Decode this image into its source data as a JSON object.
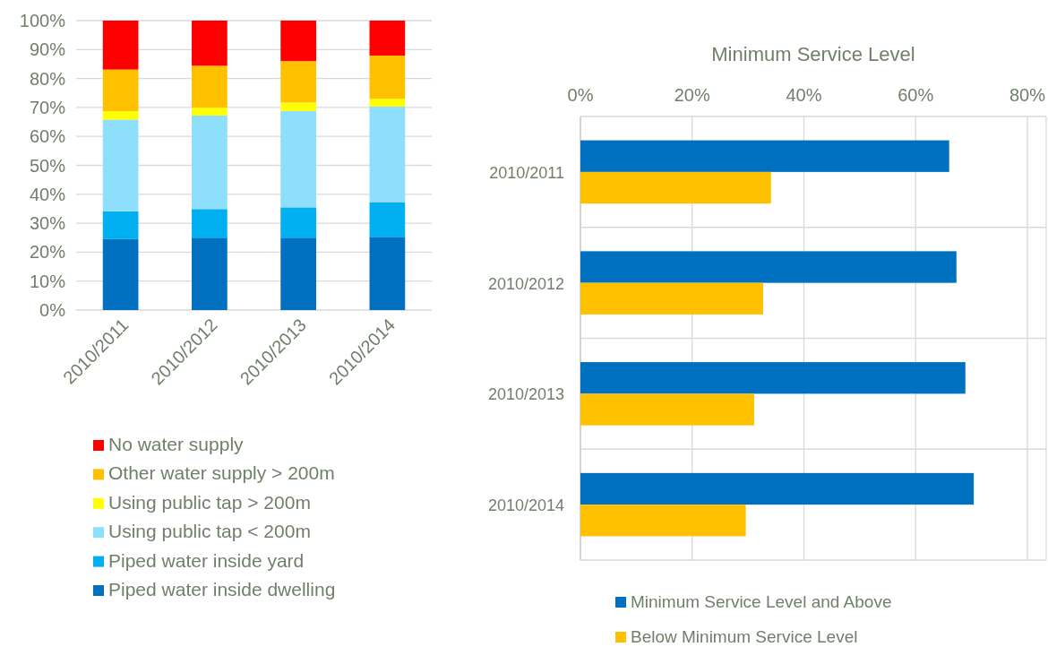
{
  "chart_data": [
    {
      "type": "bar",
      "stacked": true,
      "categories": [
        "2010/2011",
        "2010/2012",
        "2010/2013",
        "2010/2014"
      ],
      "series": [
        {
          "name": "Piped water inside dwelling",
          "color": "#0070c0",
          "values": [
            24.5,
            25.0,
            25.0,
            25.3
          ]
        },
        {
          "name": "Piped water inside yard",
          "color": "#00b0f0",
          "values": [
            9.6,
            9.9,
            10.5,
            12.0
          ]
        },
        {
          "name": "Using public tap < 200m",
          "color": "#8ddffc",
          "values": [
            31.7,
            32.3,
            33.3,
            33.0
          ]
        },
        {
          "name": "Using public tap > 200m",
          "color": "#ffff00",
          "values": [
            2.9,
            2.7,
            2.9,
            2.7
          ]
        },
        {
          "name": "Other water supply > 200m",
          "color": "#ffc000",
          "values": [
            14.4,
            14.5,
            14.3,
            14.9
          ]
        },
        {
          "name": "No water supply",
          "color": "#ff0000",
          "values": [
            16.9,
            15.6,
            14.0,
            12.1
          ]
        }
      ],
      "ylim": [
        0,
        100
      ],
      "yticks": [
        {
          "value": 0,
          "label": "0%"
        },
        {
          "value": 10,
          "label": "10%"
        },
        {
          "value": 20,
          "label": "20%"
        },
        {
          "value": 30,
          "label": "30%"
        },
        {
          "value": 40,
          "label": "40%"
        },
        {
          "value": 50,
          "label": "50%"
        },
        {
          "value": 60,
          "label": "60%"
        },
        {
          "value": 70,
          "label": "70%"
        },
        {
          "value": 80,
          "label": "80%"
        },
        {
          "value": 90,
          "label": "90%"
        },
        {
          "value": 100,
          "label": "100%"
        }
      ],
      "grid": "y",
      "legend": "bottom"
    },
    {
      "type": "bar",
      "orientation": "horizontal",
      "title": "Minimum Service Level",
      "categories": [
        "2010/2011",
        "2010/2012",
        "2010/2013",
        "2010/2014"
      ],
      "series": [
        {
          "name": "Minimum Service Level and Above",
          "color": "#0070c0",
          "values": [
            66.0,
            67.3,
            68.9,
            70.4
          ]
        },
        {
          "name": "Below Minimum Service Level",
          "color": "#ffc000",
          "values": [
            34.1,
            32.7,
            31.1,
            29.6
          ]
        }
      ],
      "xlim": [
        0,
        80
      ],
      "xticks": [
        {
          "value": 0,
          "label": "0%"
        },
        {
          "value": 20,
          "label": "20%"
        },
        {
          "value": 40,
          "label": "40%"
        },
        {
          "value": 60,
          "label": "60%"
        },
        {
          "value": 80,
          "label": "80%"
        }
      ],
      "grid": true,
      "legend": "bottom"
    }
  ]
}
